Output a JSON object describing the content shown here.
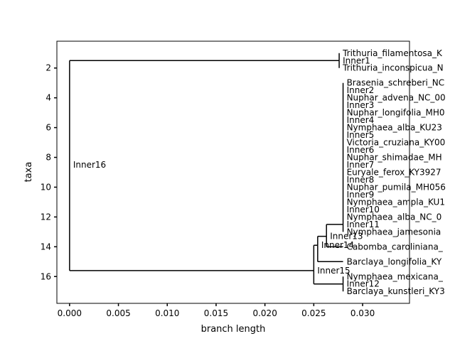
{
  "axes": {
    "xlabel": "branch length",
    "ylabel": "taxa",
    "xlim": [
      -0.0013,
      0.0348
    ],
    "ylim": [
      17.8,
      0.2
    ],
    "xticks": [
      0.0,
      0.005,
      0.01,
      0.015,
      0.02,
      0.025,
      0.03
    ],
    "xtick_labels": [
      "0.000",
      "0.005",
      "0.010",
      "0.015",
      "0.020",
      "0.025",
      "0.030"
    ],
    "yticks": [
      2,
      4,
      6,
      8,
      10,
      12,
      14,
      16
    ],
    "ytick_labels": [
      "2",
      "4",
      "6",
      "8",
      "10",
      "12",
      "14",
      "16"
    ]
  },
  "chart_data": {
    "type": "tree",
    "xlabel": "branch length",
    "ylabel": "taxa",
    "leaves": [
      {
        "name": "Trithuria_filamentosa_K",
        "x": 0.0276,
        "y": 1
      },
      {
        "name": "Trithuria_inconspicua_N",
        "x": 0.0276,
        "y": 2
      },
      {
        "name": "Brasenia_schreberi_NC",
        "x": 0.028,
        "y": 3
      },
      {
        "name": "Nuphar_advena_NC_00",
        "x": 0.028,
        "y": 4
      },
      {
        "name": "Nuphar_longifolia_MH0",
        "x": 0.028,
        "y": 5
      },
      {
        "name": "Nymphaea_alba_KU23",
        "x": 0.028,
        "y": 6
      },
      {
        "name": "Victoria_cruziana_KY00",
        "x": 0.028,
        "y": 7
      },
      {
        "name": "Nuphar_shimadae_MH",
        "x": 0.028,
        "y": 8
      },
      {
        "name": "Euryale_ferox_KY3927",
        "x": 0.028,
        "y": 9
      },
      {
        "name": "Nuphar_pumila_MH056",
        "x": 0.028,
        "y": 10
      },
      {
        "name": "Nymphaea_ampla_KU1",
        "x": 0.028,
        "y": 11
      },
      {
        "name": "Nymphaea_alba_NC_0",
        "x": 0.028,
        "y": 12
      },
      {
        "name": "Nymphaea_jamesonia",
        "x": 0.028,
        "y": 13
      },
      {
        "name": "Cabomba_caroliniana_",
        "x": 0.028,
        "y": 14
      },
      {
        "name": "Barclaya_longifolia_KY",
        "x": 0.028,
        "y": 15
      },
      {
        "name": "Nymphaea_mexicana_",
        "x": 0.028,
        "y": 16
      },
      {
        "name": "Barclaya_kunstleri_KY3",
        "x": 0.028,
        "y": 17
      }
    ],
    "inner_nodes": [
      {
        "name": "Inner1",
        "x": 0.0276,
        "y": 1.5
      },
      {
        "name": "Inner2",
        "x": 0.028,
        "y": 3.5
      },
      {
        "name": "Inner3",
        "x": 0.028,
        "y": 4.5
      },
      {
        "name": "Inner4",
        "x": 0.028,
        "y": 5.5
      },
      {
        "name": "Inner5",
        "x": 0.028,
        "y": 6.5
      },
      {
        "name": "Inner6",
        "x": 0.028,
        "y": 7.5
      },
      {
        "name": "Inner7",
        "x": 0.028,
        "y": 8.5
      },
      {
        "name": "Inner8",
        "x": 0.028,
        "y": 9.5
      },
      {
        "name": "Inner9",
        "x": 0.028,
        "y": 10.5
      },
      {
        "name": "Inner10",
        "x": 0.028,
        "y": 11.5
      },
      {
        "name": "Inner11",
        "x": 0.028,
        "y": 12.5
      },
      {
        "name": "Inner12",
        "x": 0.028,
        "y": 16.5
      },
      {
        "name": "Inner13",
        "x": 0.0263,
        "y": 13.3
      },
      {
        "name": "Inner14",
        "x": 0.0254,
        "y": 13.9
      },
      {
        "name": "Inner15",
        "x": 0.025,
        "y": 15.6
      },
      {
        "name": "Inner16",
        "x": 0.0,
        "y": 8.5
      }
    ],
    "edges": [
      {
        "from": "Inner16",
        "to": "Inner1"
      },
      {
        "from": "Inner16",
        "to": "Inner15"
      },
      {
        "from": "Inner1",
        "to": "Trithuria_filamentosa_K"
      },
      {
        "from": "Inner1",
        "to": "Trithuria_inconspicua_N"
      },
      {
        "from": "Inner15",
        "to": "Inner14"
      },
      {
        "from": "Inner15",
        "to": "Inner12"
      },
      {
        "from": "Inner14",
        "to": "Inner13"
      },
      {
        "from": "Inner14",
        "to": "Barclaya_longifolia_KY"
      },
      {
        "from": "Inner13",
        "to": "Inner11"
      },
      {
        "from": "Inner13",
        "to": "Cabomba_caroliniana_"
      },
      {
        "from": "Inner12",
        "to": "Nymphaea_mexicana_"
      },
      {
        "from": "Inner12",
        "to": "Barclaya_kunstleri_KY3"
      }
    ],
    "comb": {
      "x": 0.028,
      "y_top": 3,
      "y_bottom": 13
    }
  }
}
